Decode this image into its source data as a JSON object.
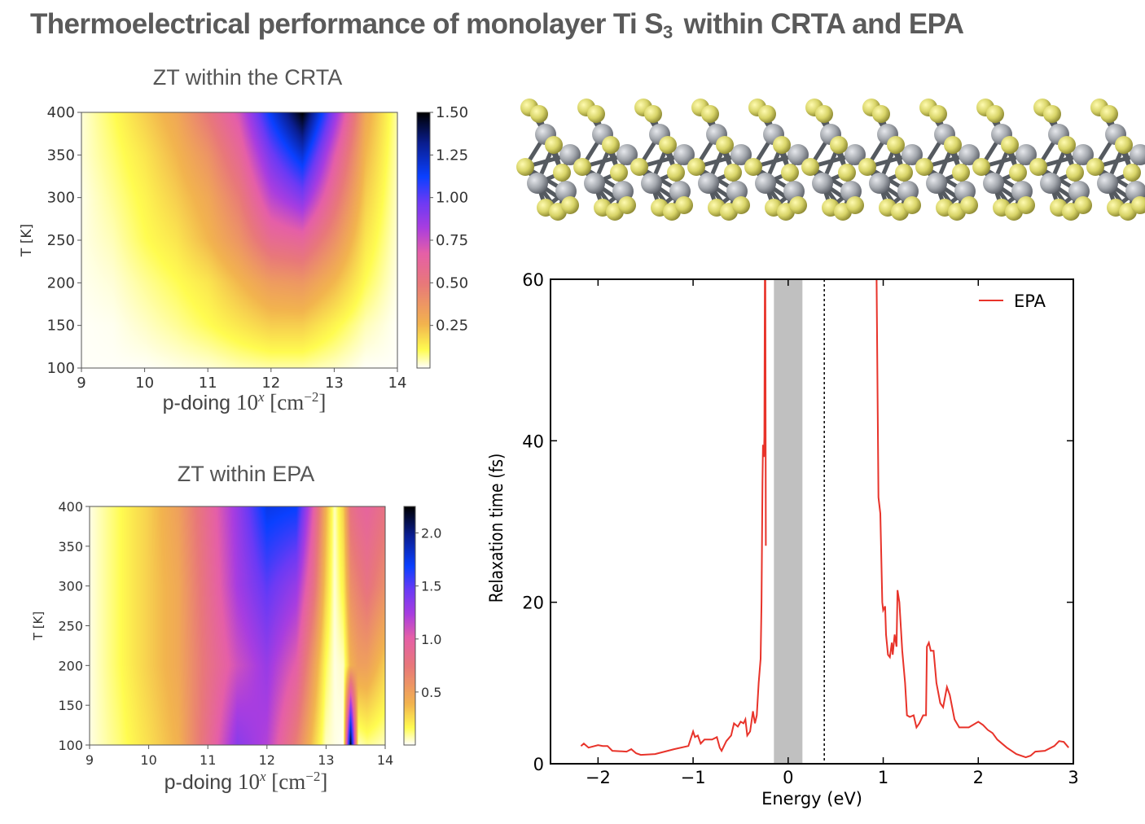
{
  "title": {
    "pre": "Thermoelectrical performance of monolayer Ti S",
    "sub": "3",
    "post": "within CRTA and EPA"
  },
  "colormap": [
    "#fffff8",
    "#fffc50",
    "#f2b44e",
    "#e8787a",
    "#e55fa8",
    "#a83de0",
    "#6b3af5",
    "#0a40ff",
    "#0a1e90",
    "#000000"
  ],
  "chart_data": [
    {
      "type": "heatmap",
      "title": "ZT within the CRTA",
      "xlabel": {
        "pre": "p-doing ",
        "base": "10",
        "exp": "x",
        "unit": " [cm",
        "unit_exp": "−2",
        "close": "]"
      },
      "ylabel": "T [K]",
      "xlim": [
        9,
        14
      ],
      "ylim": [
        100,
        400
      ],
      "xticks": [
        "9",
        "10",
        "11",
        "12",
        "13",
        "14"
      ],
      "yticks": [
        "100",
        "150",
        "200",
        "250",
        "300",
        "350",
        "400"
      ],
      "colorbar": {
        "range": [
          0,
          1.5
        ],
        "ticks": [
          "0.25",
          "0.50",
          "0.75",
          "1.00",
          "1.25",
          "1.50"
        ]
      },
      "x": [
        9,
        9.5,
        10,
        10.5,
        11,
        11.5,
        12,
        12.5,
        13,
        13.5,
        14
      ],
      "y": [
        100,
        150,
        200,
        250,
        300,
        350,
        400
      ],
      "z": [
        [
          0,
          0,
          0,
          0.01,
          0.02,
          0.04,
          0.05,
          0.05,
          0.03,
          0,
          0
        ],
        [
          0,
          0.005,
          0.03,
          0.06,
          0.1,
          0.15,
          0.2,
          0.2,
          0.12,
          0.04,
          0
        ],
        [
          0.005,
          0.02,
          0.06,
          0.1,
          0.15,
          0.25,
          0.35,
          0.37,
          0.25,
          0.1,
          0.01
        ],
        [
          0.01,
          0.04,
          0.1,
          0.15,
          0.25,
          0.38,
          0.58,
          0.62,
          0.4,
          0.15,
          0.02
        ],
        [
          0.01,
          0.06,
          0.12,
          0.2,
          0.3,
          0.48,
          0.78,
          0.92,
          0.55,
          0.2,
          0.03
        ],
        [
          0.02,
          0.08,
          0.15,
          0.25,
          0.38,
          0.6,
          0.95,
          1.2,
          0.7,
          0.25,
          0.04
        ],
        [
          0.02,
          0.1,
          0.2,
          0.3,
          0.5,
          0.72,
          1.15,
          1.5,
          0.9,
          0.3,
          0.05
        ]
      ]
    },
    {
      "type": "heatmap",
      "title": "ZT within EPA",
      "xlabel": {
        "pre": "p-doing ",
        "base": "10",
        "exp": "x",
        "unit": " [cm",
        "unit_exp": "−2",
        "close": "]"
      },
      "ylabel": "T [K]",
      "xlim": [
        9,
        14
      ],
      "ylim": [
        100,
        400
      ],
      "xticks": [
        "9",
        "10",
        "11",
        "12",
        "13",
        "14"
      ],
      "yticks": [
        "100",
        "150",
        "200",
        "250",
        "300",
        "350",
        "400"
      ],
      "colorbar": {
        "range": [
          0,
          2.25
        ],
        "ticks": [
          "0.5",
          "1.0",
          "1.5",
          "2.0"
        ]
      },
      "x": [
        9,
        9.5,
        10,
        10.5,
        11,
        11.5,
        12,
        12.5,
        12.8,
        13,
        13.15,
        13.3,
        13.42,
        13.55,
        13.7,
        14
      ],
      "y": [
        100,
        200,
        300,
        400
      ],
      "z": [
        [
          0.02,
          0.12,
          0.25,
          0.4,
          0.85,
          1.35,
          1.2,
          0.7,
          0.3,
          0.05,
          0.02,
          0.0,
          2.25,
          0.05,
          0.1,
          0.05
        ],
        [
          0.02,
          0.15,
          0.3,
          0.45,
          0.8,
          1.1,
          1.3,
          1.0,
          0.5,
          0.15,
          0.02,
          0.05,
          0.4,
          0.5,
          0.5,
          0.3
        ],
        [
          0.02,
          0.15,
          0.3,
          0.45,
          0.85,
          1.25,
          1.5,
          1.3,
          0.8,
          0.3,
          0.03,
          0.2,
          0.6,
          0.7,
          0.8,
          0.6
        ],
        [
          0.02,
          0.15,
          0.3,
          0.5,
          0.9,
          1.3,
          1.75,
          1.7,
          1.0,
          0.4,
          0.05,
          0.3,
          0.8,
          0.9,
          0.95,
          0.8
        ]
      ]
    },
    {
      "type": "line",
      "xlabel": "Energy (eV)",
      "ylabel": "Relaxation time (fs)",
      "xlim": [
        -2.5,
        3
      ],
      "ylim": [
        0,
        60
      ],
      "xticks": [
        {
          "v": -2,
          "label": "−2"
        },
        {
          "v": -1,
          "label": "−1"
        },
        {
          "v": 0,
          "label": "0"
        },
        {
          "v": 1,
          "label": "1"
        },
        {
          "v": 2,
          "label": "2"
        },
        {
          "v": 3,
          "label": "3"
        }
      ],
      "yticks": [
        {
          "v": 0,
          "label": "0"
        },
        {
          "v": 20,
          "label": "20"
        },
        {
          "v": 40,
          "label": "40"
        },
        {
          "v": 60,
          "label": "60"
        }
      ],
      "legend": {
        "position": "top-right"
      },
      "shaded_band": [
        -0.15,
        0.15
      ],
      "shaded_color": "#c0c0c0",
      "dotted_line_x": 0.38,
      "series": [
        {
          "name": "EPA",
          "color": "#e8332a",
          "points": [
            [
              -2.18,
              2.2
            ],
            [
              -2.15,
              2.5
            ],
            [
              -2.1,
              2.0
            ],
            [
              -2.0,
              2.3
            ],
            [
              -1.95,
              2.2
            ],
            [
              -1.9,
              2.2
            ],
            [
              -1.85,
              1.6
            ],
            [
              -1.7,
              1.5
            ],
            [
              -1.65,
              1.8
            ],
            [
              -1.6,
              1.3
            ],
            [
              -1.55,
              1.1
            ],
            [
              -1.4,
              1.2
            ],
            [
              -1.3,
              1.5
            ],
            [
              -1.2,
              1.8
            ],
            [
              -1.05,
              2.2
            ],
            [
              -1.0,
              4.0
            ],
            [
              -0.98,
              3.3
            ],
            [
              -0.95,
              3.5
            ],
            [
              -0.92,
              2.5
            ],
            [
              -0.88,
              3.0
            ],
            [
              -0.8,
              3.0
            ],
            [
              -0.75,
              3.3
            ],
            [
              -0.72,
              2.0
            ],
            [
              -0.7,
              1.6
            ],
            [
              -0.65,
              2.8
            ],
            [
              -0.6,
              3.5
            ],
            [
              -0.57,
              5.0
            ],
            [
              -0.53,
              4.6
            ],
            [
              -0.5,
              5.2
            ],
            [
              -0.47,
              5.0
            ],
            [
              -0.45,
              5.5
            ],
            [
              -0.43,
              3.5
            ],
            [
              -0.4,
              4.0
            ],
            [
              -0.37,
              6.5
            ],
            [
              -0.35,
              5.0
            ],
            [
              -0.33,
              6.0
            ],
            [
              -0.31,
              10
            ],
            [
              -0.29,
              13
            ],
            [
              -0.28,
              20
            ],
            [
              -0.27,
              35
            ],
            [
              -0.265,
              39.5
            ],
            [
              -0.255,
              38
            ],
            [
              -0.25,
              40.5
            ],
            [
              -0.245,
              60
            ],
            [
              -0.24,
              60
            ],
            [
              -0.235,
              27
            ],
            [
              null,
              null
            ],
            [
              0.93,
              60
            ],
            [
              0.95,
              33
            ],
            [
              0.97,
              31
            ],
            [
              0.99,
              20
            ],
            [
              1.0,
              19
            ],
            [
              1.02,
              19.5
            ],
            [
              1.03,
              16
            ],
            [
              1.05,
              13.5
            ],
            [
              1.07,
              13.2
            ],
            [
              1.09,
              15
            ],
            [
              1.1,
              13.5
            ],
            [
              1.12,
              16
            ],
            [
              1.14,
              14.5
            ],
            [
              1.15,
              21.5
            ],
            [
              1.17,
              20
            ],
            [
              1.2,
              14
            ],
            [
              1.23,
              10
            ],
            [
              1.25,
              6.0
            ],
            [
              1.28,
              5.8
            ],
            [
              1.32,
              6.0
            ],
            [
              1.35,
              4.5
            ],
            [
              1.38,
              5.0
            ],
            [
              1.42,
              6.0
            ],
            [
              1.45,
              6.0
            ],
            [
              1.46,
              14.5
            ],
            [
              1.48,
              15
            ],
            [
              1.5,
              14
            ],
            [
              1.53,
              14
            ],
            [
              1.56,
              10
            ],
            [
              1.6,
              7.5
            ],
            [
              1.63,
              7.0
            ],
            [
              1.67,
              9.5
            ],
            [
              1.7,
              8.5
            ],
            [
              1.75,
              5.5
            ],
            [
              1.8,
              4.5
            ],
            [
              1.9,
              4.5
            ],
            [
              2.0,
              5.2
            ],
            [
              2.05,
              4.8
            ],
            [
              2.1,
              4.2
            ],
            [
              2.15,
              3.8
            ],
            [
              2.2,
              3.0
            ],
            [
              2.3,
              2.0
            ],
            [
              2.4,
              1.2
            ],
            [
              2.5,
              0.8
            ],
            [
              2.55,
              1.0
            ],
            [
              2.6,
              1.5
            ],
            [
              2.7,
              1.6
            ],
            [
              2.8,
              2.2
            ],
            [
              2.85,
              2.8
            ],
            [
              2.9,
              2.7
            ],
            [
              2.95,
              2.0
            ]
          ]
        }
      ]
    }
  ],
  "structure_colors": {
    "sulfur": "#d8d468",
    "titanium": "#a4a8ae",
    "bond": "#555a60"
  }
}
